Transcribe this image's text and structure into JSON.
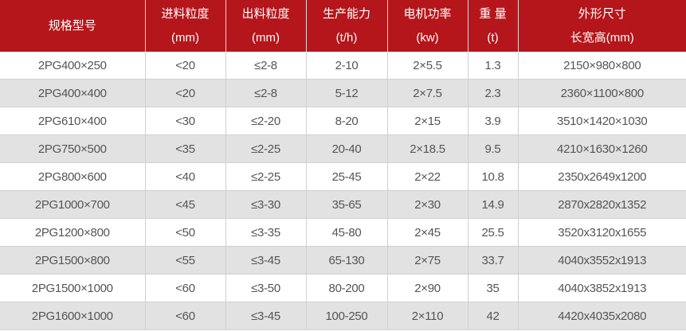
{
  "colors": {
    "header_bg": "#b5161b",
    "alt_row": "#e2e2e2"
  },
  "headers": [
    [
      "规格型号",
      ""
    ],
    [
      "进料粒度",
      "(mm)"
    ],
    [
      "出料粒度",
      "(mm)"
    ],
    [
      "生产能力",
      "(t/h)"
    ],
    [
      "电机功率",
      "(kw)"
    ],
    [
      "重 量",
      "(t)"
    ],
    [
      "外形尺寸",
      "长宽高(mm)"
    ]
  ],
  "rows": [
    [
      "2PG400×250",
      "<20",
      "≤2-8",
      "2-10",
      "2×5.5",
      "1.3",
      "2150×980×800"
    ],
    [
      "2PG400×400",
      "<20",
      "≤2-8",
      "5-12",
      "2×7.5",
      "2.3",
      "2360×1100×800"
    ],
    [
      "2PG610×400",
      "<30",
      "≤2-20",
      "8-20",
      "2×15",
      "3.9",
      "3510×1420×1030"
    ],
    [
      "2PG750×500",
      "<35",
      "≤2-25",
      "20-40",
      "2×18.5",
      "9.5",
      "4210×1630×1260"
    ],
    [
      "2PG800×600",
      "<40",
      "≤2-25",
      "25-45",
      "2×22",
      "10.8",
      "2350x2649x1200"
    ],
    [
      "2PG1000×700",
      "<45",
      "≤3-30",
      "35-65",
      "2×30",
      "14.9",
      "2870x2820x1352"
    ],
    [
      "2PG1200×800",
      "<50",
      "≤3-35",
      "45-80",
      "2×45",
      "25.5",
      "3520x3120x1655"
    ],
    [
      "2PG1500×800",
      "<55",
      "≤3-45",
      "65-130",
      "2×75",
      "33.7",
      "4040x3552x1913"
    ],
    [
      "2PG1500×1000",
      "<60",
      "≤3-50",
      "80-200",
      "2×90",
      "35",
      "4040x3852x1913"
    ],
    [
      "2PG1600×1000",
      "<60",
      "≤3-45",
      "100-250",
      "2×110",
      "42",
      "4420x4035x2080"
    ]
  ]
}
